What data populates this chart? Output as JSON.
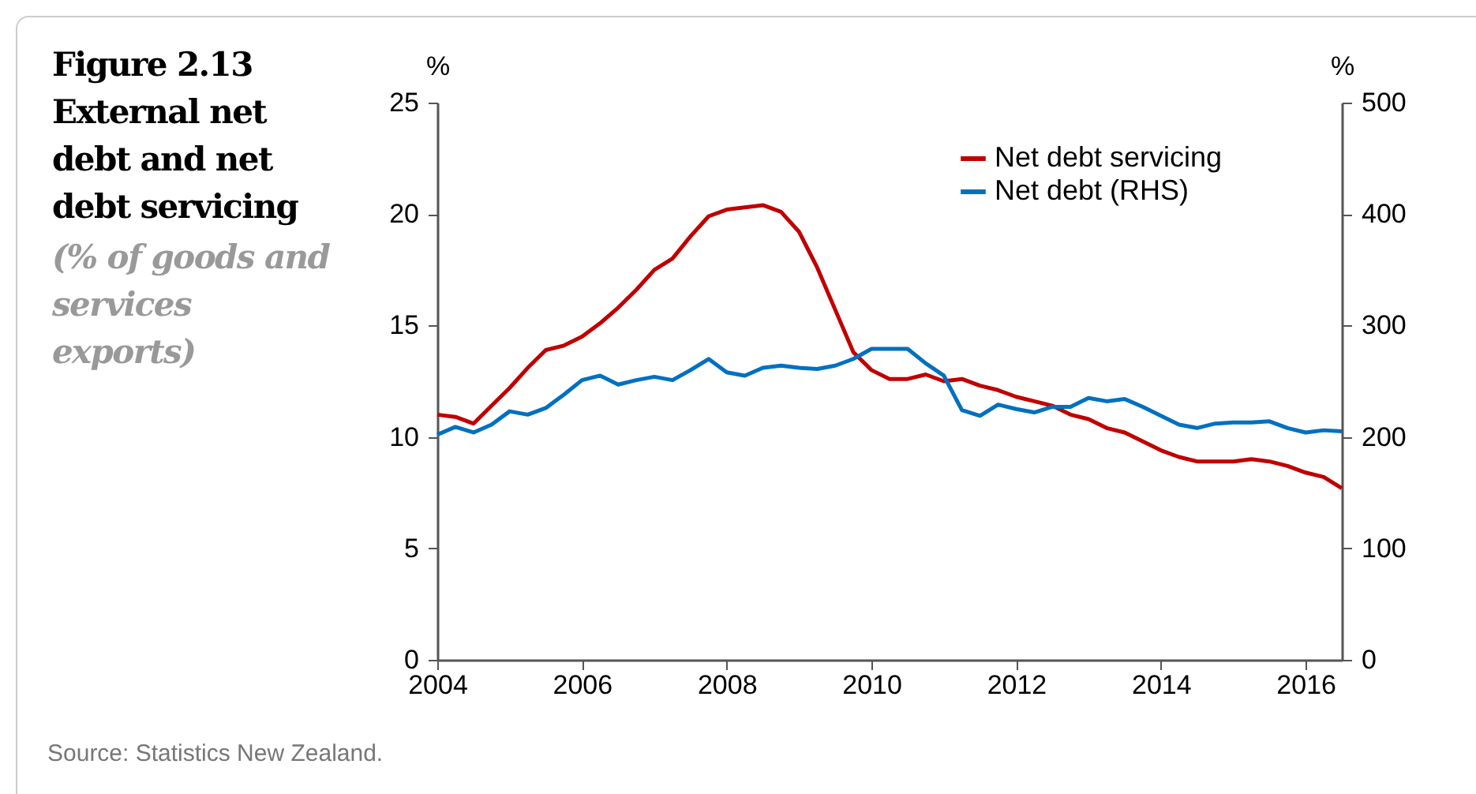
{
  "chart_data": {
    "type": "line",
    "title": "Figure 2.13 External net debt and net debt servicing",
    "subtitle": "(% of goods and services exports)",
    "ylabel": "%",
    "y2label": "%",
    "annotations": [
      "Source:  Statistics New Zealand."
    ],
    "x": [
      2004,
      2004.25,
      2004.5,
      2004.75,
      2005,
      2005.25,
      2005.5,
      2005.75,
      2006,
      2006.25,
      2006.5,
      2006.75,
      2007,
      2007.25,
      2007.5,
      2007.75,
      2008,
      2008.25,
      2008.5,
      2008.75,
      2009,
      2009.25,
      2009.5,
      2009.75,
      2010,
      2010.25,
      2010.5,
      2010.75,
      2011,
      2011.25,
      2011.5,
      2011.75,
      2012,
      2012.25,
      2012.5,
      2012.75,
      2013,
      2013.25,
      2013.5,
      2013.75,
      2014,
      2014.25,
      2014.5,
      2014.75,
      2015,
      2015.25,
      2015.5,
      2015.75,
      2016,
      2016.25,
      2016.5
    ],
    "series": [
      {
        "name": "Net debt servicing",
        "color": "#c00000",
        "values": [
          11.0,
          10.9,
          10.6,
          11.4,
          12.2,
          13.1,
          13.9,
          14.1,
          14.5,
          15.1,
          15.8,
          16.6,
          17.5,
          18.0,
          19.0,
          19.9,
          20.2,
          20.3,
          20.4,
          20.1,
          19.2,
          17.6,
          15.7,
          13.8,
          13.0,
          12.6,
          12.6,
          12.8,
          12.5,
          12.6,
          12.3,
          12.1,
          11.8,
          11.6,
          11.4,
          11.0,
          10.8,
          10.4,
          10.2,
          9.8,
          9.4,
          9.1,
          8.9,
          8.9,
          8.9,
          9.0,
          8.9,
          8.7,
          8.4,
          8.2,
          7.7
        ]
      },
      {
        "name": "Net debt (RHS)",
        "color": "#0070c0",
        "axis": "y2",
        "values": [
          202,
          209,
          204,
          211,
          223,
          220,
          226,
          238,
          251,
          255,
          247,
          251,
          254,
          251,
          260,
          270,
          258,
          255,
          262,
          264,
          262,
          261,
          264,
          270,
          279,
          279,
          279,
          266,
          255,
          224,
          219,
          229,
          225,
          222,
          227,
          227,
          235,
          232,
          234,
          227,
          219,
          211,
          208,
          212,
          213,
          213,
          214,
          208,
          204,
          206,
          205
        ]
      }
    ],
    "xlim": [
      2004,
      2016.5
    ],
    "xticks": [
      2004,
      2006,
      2008,
      2010,
      2012,
      2014,
      2016
    ],
    "ylim": [
      0,
      25
    ],
    "yticks": [
      0,
      5,
      10,
      15,
      20,
      25
    ],
    "y2lim": [
      0,
      500
    ],
    "y2ticks": [
      0,
      100,
      200,
      300,
      400,
      500
    ],
    "grid": false,
    "legend": "top right",
    "marker": "none",
    "line_style": "solid"
  }
}
